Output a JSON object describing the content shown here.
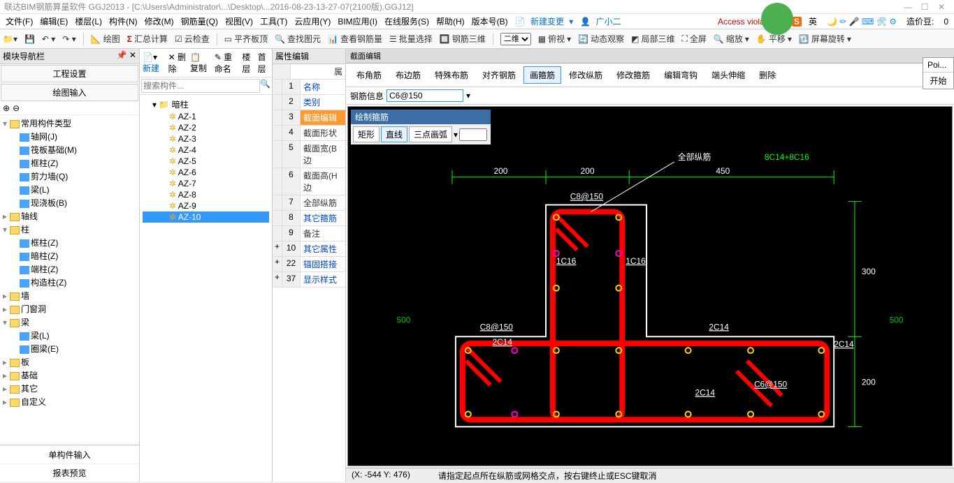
{
  "title": "联达BIM钢筋算量软件 GGJ2013 - [C:\\Users\\Administrator\\...\\Desktop\\...2016-08-23-13-27-07(2100版).GGJ12]",
  "menu": [
    "文件(F)",
    "编辑(E)",
    "楼层(L)",
    "构件(N)",
    "修改(M)",
    "钢筋量(Q)",
    "视图(V)",
    "工具(T)",
    "云应用(Y)",
    "BIM应用(I)",
    "在线服务(S)",
    "帮助(H)",
    "版本号(B)"
  ],
  "menu_right": {
    "new_change": "新建变更",
    "xiaoer": "广小二",
    "error": "Access violation a",
    "count_label": "造价豆:",
    "count_val": "0"
  },
  "toolbar": {
    "draw": "绘图",
    "sum": "汇总计算",
    "cloud_check": "云检查",
    "flat_top": "平齐板顶",
    "find": "查找图元",
    "steel_qty": "查看钢筋量",
    "batch_sel": "批量选择",
    "rebar3d": "钢筋三维",
    "view_sel": "二维",
    "persp": "俯视",
    "dyn": "动态观察",
    "local3d": "局部三维",
    "full": "全屏",
    "zoom": "缩放",
    "pan": "平移",
    "screen_rot": "屏幕旋转"
  },
  "left": {
    "header": "模块导航栏",
    "sec1": "工程设置",
    "sec2": "绘图输入",
    "tree": [
      {
        "l": "常用构件类型",
        "lvl": 0,
        "exp": "▾",
        "ico": "folder"
      },
      {
        "l": "轴网(J)",
        "lvl": 1,
        "ico": "node-blue"
      },
      {
        "l": "筏板基础(M)",
        "lvl": 1,
        "ico": "node-blue"
      },
      {
        "l": "框柱(Z)",
        "lvl": 1,
        "ico": "node-blue"
      },
      {
        "l": "剪力墙(Q)",
        "lvl": 1,
        "ico": "node-blue"
      },
      {
        "l": "梁(L)",
        "lvl": 1,
        "ico": "node-blue"
      },
      {
        "l": "现浇板(B)",
        "lvl": 1,
        "ico": "node-blue"
      },
      {
        "l": "轴线",
        "lvl": 0,
        "exp": "▸",
        "ico": "folder"
      },
      {
        "l": "柱",
        "lvl": 0,
        "exp": "▾",
        "ico": "folder"
      },
      {
        "l": "框柱(Z)",
        "lvl": 1,
        "ico": "node-blue"
      },
      {
        "l": "暗柱(Z)",
        "lvl": 1,
        "ico": "node-blue"
      },
      {
        "l": "端柱(Z)",
        "lvl": 1,
        "ico": "node-blue"
      },
      {
        "l": "构造柱(Z)",
        "lvl": 1,
        "ico": "node-blue"
      },
      {
        "l": "墙",
        "lvl": 0,
        "exp": "▸",
        "ico": "folder"
      },
      {
        "l": "门窗洞",
        "lvl": 0,
        "exp": "▸",
        "ico": "folder"
      },
      {
        "l": "梁",
        "lvl": 0,
        "exp": "▾",
        "ico": "folder"
      },
      {
        "l": "梁(L)",
        "lvl": 1,
        "ico": "node-blue"
      },
      {
        "l": "圈梁(E)",
        "lvl": 1,
        "ico": "node-blue"
      },
      {
        "l": "板",
        "lvl": 0,
        "exp": "▸",
        "ico": "folder"
      },
      {
        "l": "基础",
        "lvl": 0,
        "exp": "▸",
        "ico": "folder"
      },
      {
        "l": "其它",
        "lvl": 0,
        "exp": "▸",
        "ico": "folder"
      },
      {
        "l": "自定义",
        "lvl": 0,
        "exp": "▸",
        "ico": "folder"
      }
    ],
    "bottom": [
      "单构件输入",
      "报表预览"
    ]
  },
  "comp": {
    "toolbar": {
      "new": "新建",
      "del": "删除",
      "copy": "复制",
      "rename": "重命名",
      "floor": "楼层",
      "home": "首层"
    },
    "search_placeholder": "搜索构件...",
    "root": "暗柱",
    "items": [
      "AZ-1",
      "AZ-2",
      "AZ-3",
      "AZ-4",
      "AZ-5",
      "AZ-6",
      "AZ-7",
      "AZ-8",
      "AZ-9",
      "AZ-10"
    ],
    "selected": "AZ-10"
  },
  "prop": {
    "title": "属性编辑",
    "rows": [
      {
        "n": "1",
        "l": "名称"
      },
      {
        "n": "2",
        "l": "类别"
      },
      {
        "n": "3",
        "l": "截面编辑",
        "sel": true
      },
      {
        "n": "4",
        "l": "截面形状",
        "black": true
      },
      {
        "n": "5",
        "l": "截面宽(B边",
        "black": true
      },
      {
        "n": "6",
        "l": "截面高(H边",
        "black": true
      },
      {
        "n": "7",
        "l": "全部纵筋",
        "black": true
      },
      {
        "n": "8",
        "l": "其它箍筋"
      },
      {
        "n": "9",
        "l": "备注",
        "black": true
      },
      {
        "n": "10",
        "l": "其它属性",
        "plus": "+"
      },
      {
        "n": "22",
        "l": "锚固搭接",
        "plus": "+"
      },
      {
        "n": "37",
        "l": "显示样式",
        "plus": "+"
      }
    ]
  },
  "canvas": {
    "title": "截面编辑",
    "tabs": [
      "布角筋",
      "布边筋",
      "特殊布筋",
      "对齐钢筋",
      "画箍筋",
      "修改纵筋",
      "修改箍筋",
      "编辑弯钩",
      "端头伸缩",
      "删除"
    ],
    "active_tab": "画箍筋",
    "rebar_label": "钢筋信息",
    "rebar_value": "C6@150",
    "draw_title": "绘制箍筋",
    "draw_btns": [
      "矩形",
      "直线",
      "三点画弧"
    ],
    "draw_active": "直线",
    "annotations": {
      "allbar_label": "全部纵筋",
      "allbar_val": "8C14+8C16",
      "dims": {
        "d200a": "200",
        "d200b": "200",
        "d450": "450",
        "d300": "300",
        "d200c": "200",
        "r500a": "500",
        "r500b": "500"
      },
      "labels": {
        "c8_150a": "C8@150",
        "c8_150b": "C8@150",
        "1c16a": "1C16",
        "1c16b": "1C16",
        "2c14a": "2C14",
        "2c14b": "2C14",
        "2c14c": "2C14",
        "2c14d": "2C14",
        "c6_150": "C6@150"
      }
    },
    "status_coord": "(X: -544 Y: 476)",
    "status_hint": "请指定起点所在纵筋或网格交点，按右键终止或ESC键取消",
    "colors": {
      "bg": "#000000",
      "rebar": "#ff0000",
      "outline": "#ffffff",
      "dim": "#00ff00",
      "text_white": "#ffffff",
      "text_green": "#00ff00",
      "dot_yellow": "#ffd000",
      "dot_pink": "#ff00c0"
    }
  },
  "popup": {
    "l1": "Poi...",
    "l2": "开始"
  }
}
